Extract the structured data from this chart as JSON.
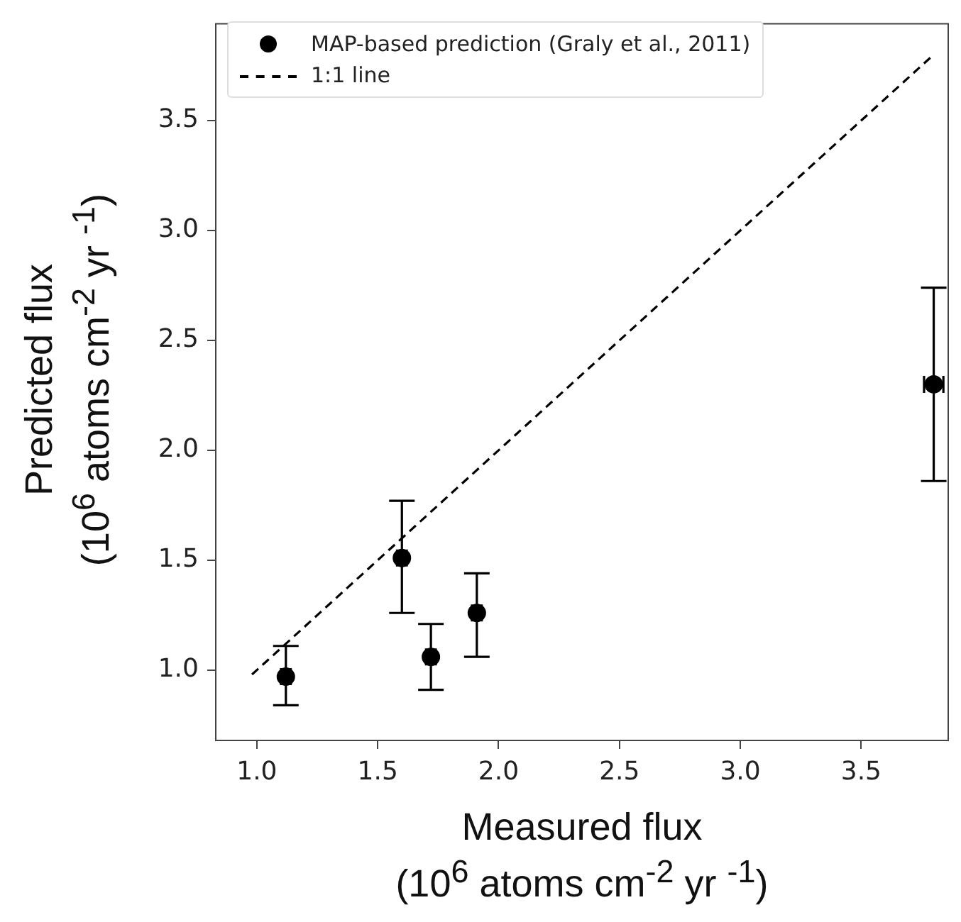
{
  "chart_data": {
    "type": "scatter",
    "xlabel": "Measured flux\n(10$^{6}$ atoms cm$^{-2}$ yr $^{-1}$)",
    "ylabel": "Predicted flux\n(10$^{6}$ atoms cm$^{-2}$ yr $^{-1}$)",
    "xlim": [
      0.83,
      3.86
    ],
    "ylim": [
      0.68,
      3.94
    ],
    "xticks": [
      {
        "value": 1,
        "label": "1.0"
      },
      1.5,
      {
        "value": 2,
        "label": "2.0"
      },
      2.5,
      {
        "value": 3,
        "label": "3.0"
      },
      3.5
    ],
    "yticks": [
      {
        "value": 1,
        "label": "1.0"
      },
      1.5,
      {
        "value": 2,
        "label": "2.0"
      },
      2.5,
      {
        "value": 3,
        "label": "3.0"
      },
      3.5
    ],
    "grid": false,
    "legend": "top left",
    "series": [
      {
        "name": "MAP-based prediction (Graly et al., 2011)",
        "color": "#000000",
        "marker": "circle",
        "x": [
          1.12,
          1.6,
          1.72,
          1.91,
          3.8
        ],
        "values": [
          0.97,
          1.51,
          1.06,
          1.26,
          2.3
        ],
        "errors": [
          [
            0.84,
            1.11
          ],
          [
            1.26,
            1.77
          ],
          [
            0.91,
            1.21
          ],
          [
            1.06,
            1.44
          ],
          [
            1.86,
            2.74
          ]
        ],
        "xerrors": [
          0.02,
          0.02,
          0.02,
          0.02,
          0.04
        ]
      },
      {
        "name": "1:1 line",
        "type": "line",
        "color": "#000000",
        "line_style": "dashed",
        "marker": "none",
        "x": [
          0.98,
          3.8
        ],
        "values": [
          0.98,
          3.8
        ]
      }
    ]
  }
}
